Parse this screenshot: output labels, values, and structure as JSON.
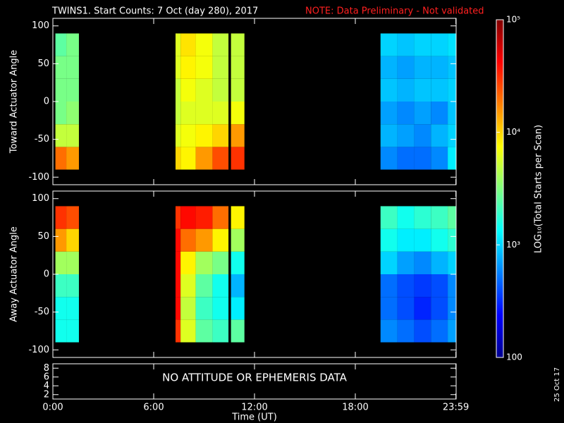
{
  "chart_data": {
    "type": "heatmap",
    "title": "TWINS1. Start Counts:  7 Oct (day 280), 2017",
    "note": "NOTE: Data Preliminary - Not validated",
    "xlabel": "Time (UT)",
    "xlim": [
      0,
      24
    ],
    "xticks": [
      {
        "value": 0,
        "label": "0:00"
      },
      {
        "value": 6,
        "label": "6:00"
      },
      {
        "value": 12,
        "label": "12:00"
      },
      {
        "value": 18,
        "label": "18:00"
      },
      {
        "value": 23.9833,
        "label": "23:59"
      }
    ],
    "x_edges": [
      0.15,
      0.8,
      1.55,
      7.3,
      7.6,
      8.5,
      9.5,
      10.45,
      10.6,
      11.4,
      19.5,
      20.5,
      21.5,
      22.5,
      23.5,
      24
    ],
    "panels": [
      {
        "ylabel": "Toward Actuator Angle",
        "ylim": [
          -110,
          110
        ],
        "yticks": [
          -100,
          -50,
          0,
          50,
          100
        ],
        "y_edges": [
          -90,
          -60,
          -30,
          0,
          30,
          60,
          90
        ],
        "z": [
          [
            20000,
            15000,
            null,
            10000,
            8000,
            15000,
            25000,
            null,
            30000,
            null,
            600,
            500,
            500,
            600,
            1200
          ],
          [
            5000,
            5000,
            null,
            6000,
            7000,
            8000,
            10000,
            null,
            15000,
            null,
            800,
            700,
            600,
            800,
            1000
          ],
          [
            3000,
            3500,
            null,
            5000,
            6000,
            6000,
            6000,
            null,
            7000,
            null,
            700,
            600,
            700,
            600,
            900
          ],
          [
            3000,
            3000,
            null,
            5000,
            7000,
            6000,
            5000,
            null,
            5000,
            null,
            900,
            800,
            900,
            900,
            1000
          ],
          [
            3000,
            3000,
            null,
            6000,
            8000,
            7000,
            5000,
            null,
            5000,
            null,
            800,
            700,
            800,
            800,
            900
          ],
          [
            2500,
            3000,
            null,
            6000,
            9000,
            7000,
            5000,
            null,
            5000,
            null,
            1000,
            900,
            1000,
            1000,
            1100
          ]
        ]
      },
      {
        "ylabel": "Away Actuator Angle",
        "ylim": [
          -110,
          110
        ],
        "yticks": [
          -100,
          -50,
          0,
          50,
          100
        ],
        "y_edges": [
          -90,
          -60,
          -30,
          0,
          30,
          60,
          90
        ],
        "z": [
          [
            1500,
            1500,
            null,
            30000,
            6000,
            2500,
            2000,
            null,
            2500,
            null,
            600,
            500,
            400,
            500,
            700
          ],
          [
            1500,
            1500,
            null,
            40000,
            5000,
            2000,
            1500,
            null,
            1200,
            null,
            500,
            400,
            300,
            400,
            600
          ],
          [
            2000,
            2000,
            null,
            40000,
            6000,
            2500,
            1500,
            null,
            800,
            null,
            500,
            400,
            350,
            400,
            600
          ],
          [
            4000,
            4000,
            null,
            40000,
            8000,
            4000,
            3000,
            null,
            1500,
            null,
            1000,
            700,
            600,
            800,
            1000
          ],
          [
            15000,
            10000,
            null,
            40000,
            20000,
            15000,
            8000,
            null,
            4000,
            null,
            1500,
            1200,
            1200,
            1500,
            1800
          ],
          [
            30000,
            25000,
            null,
            30000,
            40000,
            35000,
            20000,
            null,
            8000,
            null,
            2000,
            1500,
            1800,
            2000,
            2500
          ]
        ]
      }
    ],
    "status_panel": {
      "ylim": [
        1,
        9
      ],
      "yticks": [
        2,
        4,
        6,
        8
      ],
      "text": "NO ATTITUDE OR EPHEMERIS DATA"
    },
    "colorbar": {
      "label": "LOG₁₀(Total Starts per Scan)",
      "log": true,
      "lim": [
        100,
        100000
      ],
      "ticks": [
        100,
        {
          "value": 1000,
          "label": "10³"
        },
        {
          "value": 10000,
          "label": "10⁴"
        },
        {
          "value": 100000,
          "label": "10⁵"
        }
      ]
    },
    "date_stamp": "25 Oct 17"
  }
}
